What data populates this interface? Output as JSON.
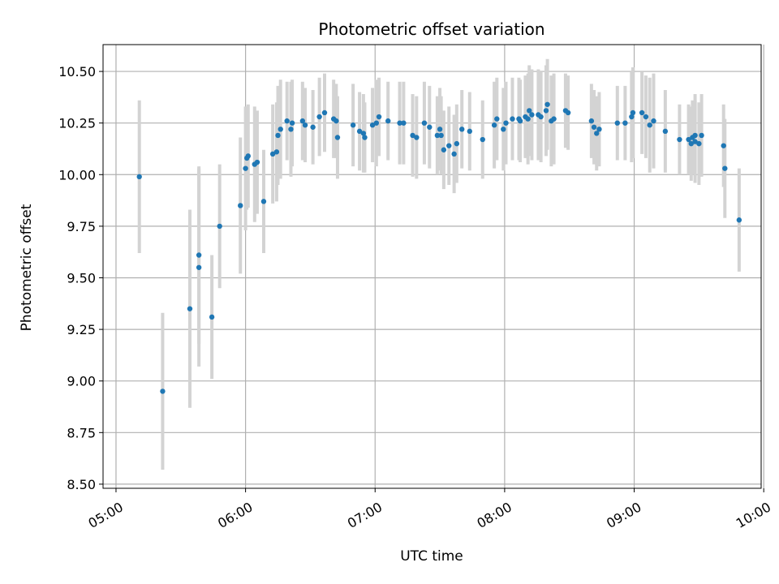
{
  "chart_data": {
    "type": "scatter",
    "title": "Photometric offset variation",
    "xlabel": "UTC time",
    "ylabel": "Photometric offset",
    "grid": true,
    "xlim_hours": [
      4.9,
      9.98
    ],
    "ylim": [
      8.48,
      10.63
    ],
    "xticks": [
      {
        "hour": 5,
        "label": "05:00"
      },
      {
        "hour": 6,
        "label": "06:00"
      },
      {
        "hour": 7,
        "label": "07:00"
      },
      {
        "hour": 8,
        "label": "08:00"
      },
      {
        "hour": 9,
        "label": "09:00"
      },
      {
        "hour": 10,
        "label": "10:00"
      }
    ],
    "yticks": [
      {
        "value": 8.5,
        "label": "8.50"
      },
      {
        "value": 8.75,
        "label": "8.75"
      },
      {
        "value": 9.0,
        "label": "9.00"
      },
      {
        "value": 9.25,
        "label": "9.25"
      },
      {
        "value": 9.5,
        "label": "9.50"
      },
      {
        "value": 9.75,
        "label": "9.75"
      },
      {
        "value": 10.0,
        "label": "10.00"
      },
      {
        "value": 10.25,
        "label": "10.25"
      },
      {
        "value": 10.5,
        "label": "10.50"
      }
    ],
    "colors": {
      "point": "#1f77b4",
      "errorbar": "#d3d3d3",
      "grid": "#b0b0b0"
    },
    "points": [
      [
        5.18,
        9.99,
        0.37
      ],
      [
        5.36,
        8.95,
        0.38
      ],
      [
        5.57,
        9.35,
        0.48
      ],
      [
        5.64,
        9.61,
        0.43
      ],
      [
        5.64,
        9.55,
        0.48
      ],
      [
        5.74,
        9.31,
        0.3
      ],
      [
        5.8,
        9.75,
        0.3
      ],
      [
        5.96,
        9.85,
        0.33
      ],
      [
        6.0,
        10.03,
        0.3
      ],
      [
        6.01,
        10.08,
        0.25
      ],
      [
        6.02,
        10.09,
        0.25
      ],
      [
        6.07,
        10.05,
        0.28
      ],
      [
        6.09,
        10.06,
        0.25
      ],
      [
        6.14,
        9.87,
        0.25
      ],
      [
        6.21,
        10.1,
        0.24
      ],
      [
        6.24,
        10.11,
        0.24
      ],
      [
        6.25,
        10.19,
        0.24
      ],
      [
        6.27,
        10.22,
        0.24
      ],
      [
        6.32,
        10.26,
        0.19
      ],
      [
        6.35,
        10.22,
        0.23
      ],
      [
        6.36,
        10.25,
        0.21
      ],
      [
        6.44,
        10.26,
        0.19
      ],
      [
        6.46,
        10.24,
        0.18
      ],
      [
        6.52,
        10.23,
        0.18
      ],
      [
        6.57,
        10.28,
        0.19
      ],
      [
        6.61,
        10.3,
        0.19
      ],
      [
        6.68,
        10.27,
        0.19
      ],
      [
        6.7,
        10.26,
        0.18
      ],
      [
        6.71,
        10.18,
        0.2
      ],
      [
        6.83,
        10.24,
        0.2
      ],
      [
        6.88,
        10.21,
        0.19
      ],
      [
        6.91,
        10.2,
        0.19
      ],
      [
        6.92,
        10.18,
        0.17
      ],
      [
        6.98,
        10.24,
        0.18
      ],
      [
        7.01,
        10.25,
        0.21
      ],
      [
        7.03,
        10.28,
        0.19
      ],
      [
        7.1,
        10.26,
        0.19
      ],
      [
        7.19,
        10.25,
        0.2
      ],
      [
        7.22,
        10.25,
        0.2
      ],
      [
        7.29,
        10.19,
        0.2
      ],
      [
        7.32,
        10.18,
        0.2
      ],
      [
        7.38,
        10.25,
        0.2
      ],
      [
        7.42,
        10.23,
        0.2
      ],
      [
        7.48,
        10.19,
        0.19
      ],
      [
        7.5,
        10.22,
        0.2
      ],
      [
        7.51,
        10.19,
        0.19
      ],
      [
        7.53,
        10.12,
        0.19
      ],
      [
        7.57,
        10.14,
        0.19
      ],
      [
        7.61,
        10.1,
        0.19
      ],
      [
        7.63,
        10.15,
        0.19
      ],
      [
        7.67,
        10.22,
        0.19
      ],
      [
        7.73,
        10.21,
        0.19
      ],
      [
        7.83,
        10.17,
        0.19
      ],
      [
        7.92,
        10.24,
        0.21
      ],
      [
        7.94,
        10.27,
        0.2
      ],
      [
        7.99,
        10.22,
        0.2
      ],
      [
        8.01,
        10.25,
        0.2
      ],
      [
        8.06,
        10.27,
        0.2
      ],
      [
        8.11,
        10.27,
        0.2
      ],
      [
        8.12,
        10.26,
        0.2
      ],
      [
        8.16,
        10.28,
        0.2
      ],
      [
        8.18,
        10.27,
        0.22
      ],
      [
        8.19,
        10.31,
        0.22
      ],
      [
        8.21,
        10.29,
        0.22
      ],
      [
        8.26,
        10.29,
        0.22
      ],
      [
        8.28,
        10.28,
        0.22
      ],
      [
        8.32,
        10.31,
        0.22
      ],
      [
        8.33,
        10.34,
        0.22
      ],
      [
        8.36,
        10.26,
        0.22
      ],
      [
        8.38,
        10.27,
        0.22
      ],
      [
        8.47,
        10.31,
        0.18
      ],
      [
        8.49,
        10.3,
        0.18
      ],
      [
        8.67,
        10.26,
        0.18
      ],
      [
        8.69,
        10.23,
        0.18
      ],
      [
        8.71,
        10.2,
        0.18
      ],
      [
        8.73,
        10.22,
        0.18
      ],
      [
        8.87,
        10.25,
        0.18
      ],
      [
        8.93,
        10.25,
        0.18
      ],
      [
        8.98,
        10.28,
        0.22
      ],
      [
        8.99,
        10.3,
        0.22
      ],
      [
        9.06,
        10.3,
        0.2
      ],
      [
        9.09,
        10.28,
        0.2
      ],
      [
        9.12,
        10.24,
        0.23
      ],
      [
        9.15,
        10.26,
        0.23
      ],
      [
        9.24,
        10.21,
        0.2
      ],
      [
        9.35,
        10.17,
        0.17
      ],
      [
        9.42,
        10.17,
        0.17
      ],
      [
        9.44,
        10.15,
        0.18
      ],
      [
        9.45,
        10.18,
        0.18
      ],
      [
        9.47,
        10.19,
        0.2
      ],
      [
        9.47,
        10.16,
        0.2
      ],
      [
        9.5,
        10.15,
        0.2
      ],
      [
        9.52,
        10.19,
        0.2
      ],
      [
        9.69,
        10.14,
        0.2
      ],
      [
        9.7,
        10.03,
        0.24
      ],
      [
        9.81,
        9.78,
        0.25
      ]
    ]
  }
}
